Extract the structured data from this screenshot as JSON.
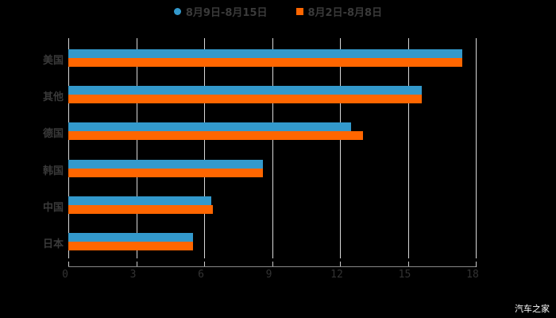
{
  "chart_data": {
    "type": "bar",
    "orientation": "horizontal",
    "categories": [
      "美国",
      "其他",
      "德国",
      "韩国",
      "中国",
      "日本"
    ],
    "series": [
      {
        "name": "8月9日-8月15日",
        "color": "#3399cc",
        "values": [
          17.4,
          15.6,
          12.5,
          8.6,
          6.3,
          5.5
        ]
      },
      {
        "name": "8月2日-8月8日",
        "color": "#ff6600",
        "values": [
          17.4,
          15.6,
          13.0,
          8.6,
          6.4,
          5.5
        ]
      }
    ],
    "title": "",
    "xlabel": "",
    "ylabel": "",
    "xlim": [
      0,
      18
    ],
    "xticks": [
      "0",
      "3",
      "6",
      "9",
      "12",
      "15",
      "18"
    ],
    "grid": true,
    "legend_position": "top"
  },
  "legend": {
    "items": [
      {
        "label": "8月9日-8月15日",
        "color": "#3399cc",
        "shape": "circle"
      },
      {
        "label": "8月2日-8月8日",
        "color": "#ff6600",
        "shape": "square"
      }
    ]
  },
  "categories_display": [
    "美国",
    "其他",
    "德国",
    "韩国",
    "中国",
    "日本"
  ],
  "xticks_display": [
    "0",
    "3",
    "6",
    "9",
    "12",
    "15",
    "18"
  ],
  "watermark": "汽车之家"
}
